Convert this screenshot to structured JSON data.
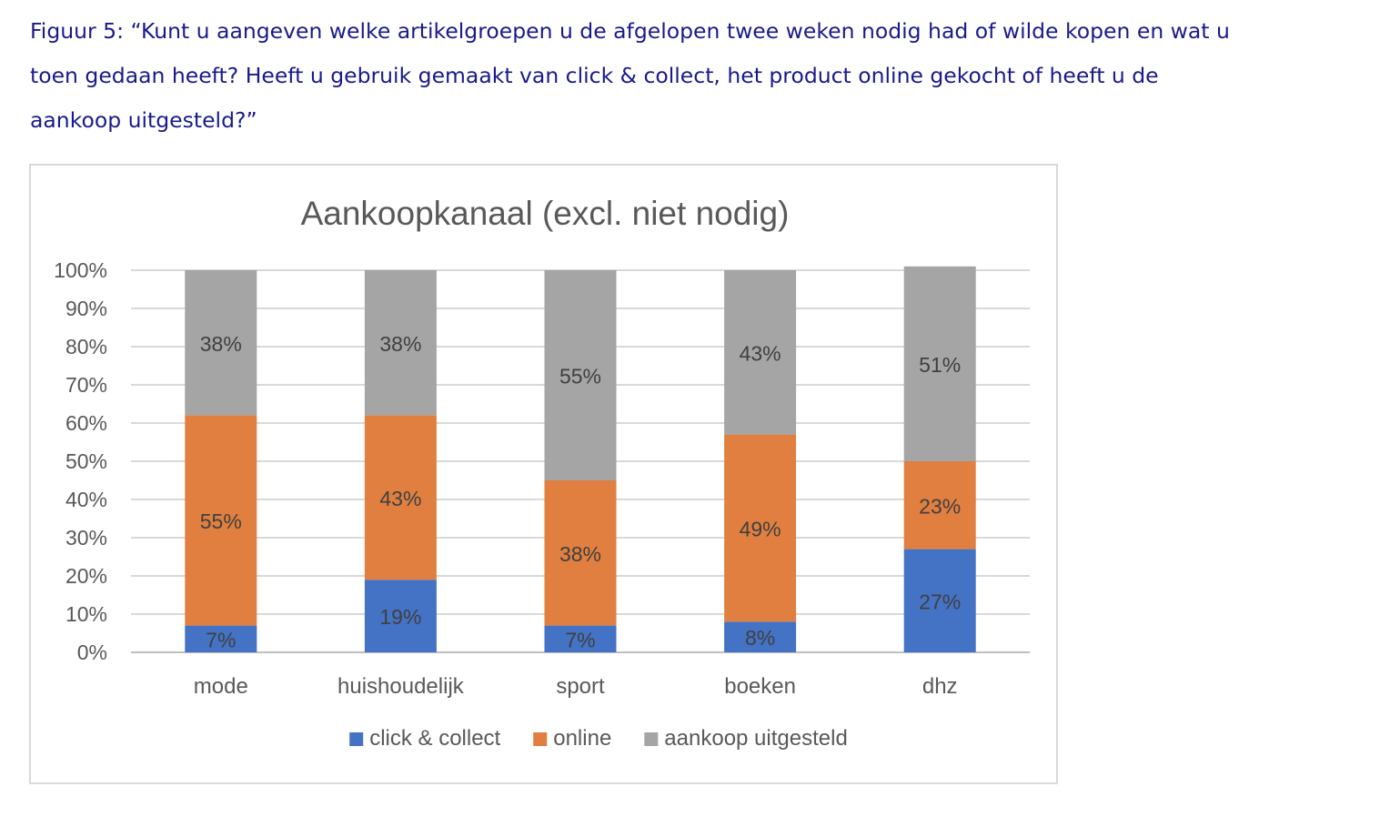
{
  "caption": {
    "line1": "Figuur 5: “Kunt u aangeven welke artikelgroepen u de afgelopen twee weken nodig had of wilde kopen en wat u",
    "line2": "toen gedaan heeft? Heeft u gebruik gemaakt van click & collect, het product online gekocht of heeft u de",
    "line3": "aankoop uitgesteld?”"
  },
  "chart_data": {
    "type": "bar",
    "stacked": "percent",
    "title": "Aankoopkanaal (excl. niet nodig)",
    "xlabel": "",
    "ylabel": "",
    "ylim": [
      0,
      100
    ],
    "yticks": [
      "0%",
      "10%",
      "20%",
      "30%",
      "40%",
      "50%",
      "60%",
      "70%",
      "80%",
      "90%",
      "100%"
    ],
    "grid": true,
    "legend": "bottom",
    "categories": [
      "mode",
      "huishoudelijk",
      "sport",
      "boeken",
      "dhz"
    ],
    "series": [
      {
        "name": "click & collect",
        "color": "#4472c4",
        "values": [
          7,
          19,
          7,
          8,
          27
        ],
        "labels": [
          "7%",
          "19%",
          "7%",
          "8%",
          "27%"
        ]
      },
      {
        "name": "online",
        "color": "#e07f3f",
        "values": [
          55,
          43,
          38,
          49,
          23
        ],
        "labels": [
          "55%",
          "43%",
          "38%",
          "49%",
          "23%"
        ]
      },
      {
        "name": "aankoop uitgesteld",
        "color": "#a5a5a5",
        "values": [
          38,
          38,
          55,
          43,
          51
        ],
        "labels": [
          "38%",
          "38%",
          "55%",
          "43%",
          "51%"
        ]
      }
    ]
  }
}
